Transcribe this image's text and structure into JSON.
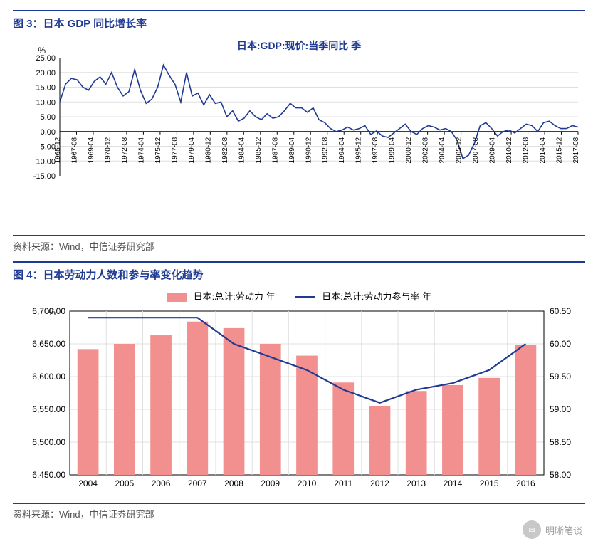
{
  "fig3": {
    "title": "图 3：日本 GDP 同比增长率",
    "chart_title": "日本:GDP:现价:当季同比 季",
    "y_axis_label": "%",
    "source": "资料来源：Wind，中信证券研究部",
    "type": "line",
    "line_color": "#1f3a93",
    "line_width": 1.6,
    "background_color": "#ffffff",
    "grid_color": "#e0e0e0",
    "axis_color": "#000000",
    "label_fontsize": 11,
    "title_fontsize": 14,
    "ylim": [
      -15,
      25
    ],
    "ytick_step": 5,
    "yticks": [
      "-15.00",
      "-10.00",
      "-5.00",
      "0.00",
      "5.00",
      "10.00",
      "15.00",
      "20.00",
      "25.00"
    ],
    "x_labels": [
      "1965-12",
      "1967-08",
      "1969-04",
      "1970-12",
      "1972-08",
      "1974-04",
      "1975-12",
      "1977-08",
      "1979-04",
      "1980-12",
      "1982-08",
      "1984-04",
      "1985-12",
      "1987-08",
      "1989-04",
      "1990-12",
      "1992-08",
      "1994-04",
      "1995-12",
      "1997-08",
      "1999-04",
      "2000-12",
      "2002-08",
      "2004-04",
      "2005-12",
      "2007-08",
      "2009-04",
      "2010-12",
      "2012-08",
      "2014-04",
      "2015-12",
      "2017-08"
    ],
    "series": [
      10,
      16,
      18,
      17.5,
      15,
      14,
      17,
      18.5,
      16,
      20,
      15,
      12,
      13.5,
      21,
      14,
      9.5,
      11,
      15,
      22.5,
      19,
      16,
      10,
      20,
      12,
      13,
      9,
      12.5,
      9.5,
      10,
      5,
      7,
      3.5,
      4.5,
      7,
      5,
      4,
      6,
      4.5,
      5,
      7,
      9.5,
      8,
      8,
      6.5,
      8,
      4,
      3,
      1,
      0,
      0.5,
      1.5,
      0.5,
      1,
      2,
      -1,
      0.2,
      -1.5,
      -2,
      -0.5,
      1,
      2.5,
      0,
      -1,
      1,
      2,
      1.5,
      0.5,
      1,
      0,
      -3,
      -9.2,
      -8,
      -4,
      2,
      3,
      1,
      -1.5,
      0,
      0.5,
      -0.5,
      1,
      2.5,
      2,
      0,
      3,
      3.5,
      2,
      1,
      1,
      2,
      1.5
    ]
  },
  "fig4": {
    "title": "图 4：日本劳动力人数和参与率变化趋势",
    "legend_bar": "日本:总计:劳动力 年",
    "legend_line": "日本:总计:劳动力参与率 年",
    "y_axis_label": "%",
    "source": "资料来源：Wind，中信证券研究部",
    "type": "bar+line",
    "bar_color": "#f28f8f",
    "line_color": "#1f3a93",
    "line_width": 2.2,
    "background_color": "#ffffff",
    "grid_color": "#e0e0e0",
    "axis_color": "#000000",
    "label_fontsize": 12,
    "y1lim": [
      6450,
      6700
    ],
    "y1tick_step": 50,
    "y1ticks": [
      "6,450.00",
      "6,500.00",
      "6,550.00",
      "6,600.00",
      "6,650.00",
      "6,700.00"
    ],
    "y2lim": [
      58.0,
      60.5
    ],
    "y2tick_step": 0.5,
    "y2ticks": [
      "58.00",
      "58.50",
      "59.00",
      "59.50",
      "60.00",
      "60.50"
    ],
    "categories": [
      "2004",
      "2005",
      "2006",
      "2007",
      "2008",
      "2009",
      "2010",
      "2011",
      "2012",
      "2013",
      "2014",
      "2015",
      "2016"
    ],
    "bar_values": [
      6642,
      6650,
      6663,
      6684,
      6674,
      6650,
      6632,
      6591,
      6555,
      6578,
      6587,
      6598,
      6648
    ],
    "line_values": [
      60.4,
      60.4,
      60.4,
      60.4,
      60.0,
      59.8,
      59.6,
      59.3,
      59.1,
      59.3,
      59.4,
      59.6,
      60.0
    ],
    "bar_width": 0.58
  },
  "watermark": "明晰笔谈"
}
